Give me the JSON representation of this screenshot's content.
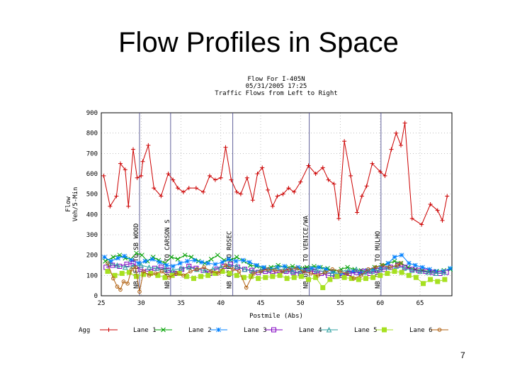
{
  "slide": {
    "title": "Flow Profiles in Space",
    "page_number": "7"
  },
  "colors": {
    "agg": "#cc0000",
    "lane1": "#00a000",
    "lane2": "#0080ff",
    "lane3": "#8000c0",
    "lane4": "#2ea0a0",
    "lane5": "#a6e020",
    "lane6": "#b06010",
    "axis": "#000000",
    "grid": "#9b9b9b",
    "station_line": "#505090"
  },
  "chart_data": {
    "type": "line",
    "title_lines": [
      "Flow For I-405N",
      "05/31/2005 17:25",
      "Traffic Flows from Left to Right"
    ],
    "xlabel": "Postmile (Abs)",
    "ylabel_lines": [
      "Flow",
      "Veh/5-Min"
    ],
    "xlim": [
      25,
      69
    ],
    "ylim": [
      0,
      900
    ],
    "xticks": [
      25,
      30,
      35,
      40,
      45,
      50,
      55,
      60,
      65
    ],
    "yticks": [
      0,
      100,
      200,
      300,
      400,
      500,
      600,
      700,
      800,
      900
    ],
    "vertical_markers": [
      {
        "x": 29.8,
        "label": "NB OFF TO SB WOOD"
      },
      {
        "x": 33.7,
        "label": "NB OFF TO CARSON S"
      },
      {
        "x": 41.5,
        "label": "NB OFF TO ROSEC"
      },
      {
        "x": 51.1,
        "label": "NB OFF TO VENICE/WA"
      },
      {
        "x": 60.1,
        "label": "NB OFF TO MULHO"
      }
    ],
    "series": [
      {
        "name": "Agg",
        "color_key": "agg",
        "marker": "plus",
        "x": [
          25.3,
          26.1,
          26.9,
          27.4,
          28.0,
          28.4,
          29.0,
          29.5,
          30.0,
          30.2,
          30.9,
          31.6,
          32.5,
          33.4,
          34.0,
          34.6,
          35.3,
          36.0,
          36.9,
          37.8,
          38.6,
          39.3,
          40.0,
          40.6,
          41.3,
          42.0,
          42.5,
          43.3,
          44.0,
          44.6,
          45.2,
          45.9,
          46.5,
          47.1,
          47.8,
          48.5,
          49.2,
          50.0,
          51.0,
          51.9,
          52.8,
          53.5,
          54.2,
          54.8,
          55.5,
          56.3,
          57.1,
          57.7,
          58.3,
          59.0,
          60.0,
          60.6,
          61.4,
          62.0,
          62.6,
          63.1,
          64.0,
          65.2,
          66.3,
          67.2,
          67.8,
          68.4
        ],
        "y": [
          590,
          440,
          490,
          650,
          620,
          440,
          720,
          580,
          590,
          660,
          740,
          530,
          490,
          600,
          570,
          530,
          510,
          530,
          530,
          510,
          590,
          570,
          580,
          730,
          570,
          510,
          500,
          580,
          470,
          600,
          630,
          520,
          440,
          490,
          500,
          530,
          510,
          560,
          640,
          600,
          630,
          570,
          550,
          380,
          760,
          590,
          410,
          490,
          540,
          650,
          610,
          590,
          720,
          800,
          740,
          850,
          380,
          350,
          450,
          420,
          370,
          490
        ]
      },
      {
        "name": "Lane 1",
        "color_key": "lane1",
        "marker": "x",
        "x": [
          25.5,
          26.5,
          27.3,
          28.0,
          28.7,
          29.4,
          30.1,
          30.8,
          31.5,
          32.2,
          33.0,
          33.8,
          34.6,
          35.5,
          36.3,
          37.2,
          38.0,
          38.8,
          39.6,
          40.4,
          41.2,
          42.0,
          42.9,
          43.7,
          44.5,
          45.4,
          46.3,
          47.2,
          48.1,
          49.0,
          49.9,
          50.8,
          51.7,
          52.5,
          53.4,
          54.2,
          55.1,
          55.9,
          56.8,
          57.6,
          58.5,
          59.3,
          60.2,
          61.0,
          61.8,
          62.6,
          63.5,
          64.4,
          65.3,
          66.2,
          67.1,
          68.0,
          68.8
        ],
        "y": [
          170,
          190,
          200,
          185,
          180,
          210,
          200,
          170,
          190,
          175,
          160,
          190,
          180,
          200,
          190,
          170,
          160,
          180,
          200,
          175,
          175,
          190,
          170,
          150,
          145,
          135,
          140,
          150,
          140,
          145,
          135,
          140,
          145,
          140,
          135,
          120,
          130,
          140,
          130,
          125,
          120,
          140,
          150,
          160,
          170,
          160,
          140,
          130,
          125,
          120,
          120,
          125,
          130
        ]
      },
      {
        "name": "Lane 2",
        "color_key": "lane2",
        "marker": "star",
        "x": [
          25.4,
          26.2,
          27.1,
          27.9,
          28.8,
          29.7,
          30.5,
          31.4,
          32.3,
          33.2,
          34.0,
          34.9,
          35.8,
          36.7,
          37.6,
          38.4,
          39.3,
          40.2,
          41.0,
          41.9,
          42.8,
          43.6,
          44.5,
          45.4,
          46.2,
          47.1,
          48.0,
          48.8,
          49.7,
          50.6,
          51.4,
          52.3,
          53.2,
          54.0,
          54.9,
          55.8,
          56.6,
          57.5,
          58.4,
          59.2,
          60.1,
          61.0,
          61.8,
          62.7,
          63.6,
          64.4,
          65.3,
          66.2,
          67.0,
          67.9,
          68.8
        ],
        "y": [
          190,
          170,
          185,
          195,
          175,
          160,
          170,
          180,
          165,
          150,
          145,
          160,
          170,
          175,
          165,
          160,
          155,
          165,
          180,
          170,
          175,
          165,
          150,
          140,
          130,
          140,
          145,
          130,
          140,
          125,
          135,
          140,
          130,
          120,
          100,
          115,
          120,
          110,
          125,
          130,
          140,
          160,
          190,
          200,
          160,
          150,
          140,
          130,
          120,
          120,
          135
        ]
      },
      {
        "name": "Lane 3",
        "color_key": "lane3",
        "marker": "square",
        "x": [
          25.6,
          26.4,
          27.3,
          28.2,
          29.0,
          29.9,
          30.8,
          31.7,
          32.5,
          33.4,
          34.3,
          35.1,
          36.0,
          36.9,
          37.8,
          38.6,
          39.5,
          40.4,
          41.2,
          42.1,
          43.0,
          43.9,
          44.7,
          45.6,
          46.5,
          47.4,
          48.2,
          49.1,
          50.0,
          50.9,
          51.8,
          52.6,
          53.5,
          54.4,
          55.2,
          56.1,
          57.0,
          57.9,
          58.7,
          59.6,
          60.5,
          61.3,
          62.2,
          63.1,
          64.0,
          64.8,
          65.7,
          66.6,
          67.5,
          68.3
        ],
        "y": [
          140,
          150,
          145,
          155,
          160,
          130,
          120,
          135,
          140,
          125,
          110,
          130,
          145,
          135,
          125,
          110,
          130,
          145,
          155,
          140,
          130,
          125,
          115,
          120,
          110,
          115,
          120,
          115,
          110,
          125,
          120,
          110,
          100,
          95,
          100,
          110,
          115,
          120,
          110,
          125,
          130,
          140,
          150,
          140,
          130,
          125,
          120,
          115,
          110,
          115
        ]
      },
      {
        "name": "Lane 4",
        "color_key": "lane4",
        "marker": "triangle",
        "x": [
          26.0,
          27.0,
          28.0,
          29.0,
          30.0,
          31.0,
          32.0,
          33.0,
          34.0,
          35.0,
          36.0,
          37.0,
          38.0,
          39.0,
          40.0,
          41.0,
          42.0,
          43.0,
          44.0,
          45.0,
          46.0,
          47.0,
          48.0,
          49.0,
          50.0,
          51.0,
          52.0,
          53.0,
          54.0,
          55.0,
          56.0,
          57.0,
          58.0,
          59.0,
          60.0,
          61.0,
          62.0,
          63.0,
          64.0,
          65.0,
          66.0,
          67.0,
          68.0
        ],
        "y": [
          160,
          150,
          140,
          145,
          150,
          140,
          135,
          130,
          125,
          135,
          140,
          130,
          125,
          130,
          140,
          150,
          145,
          130,
          120,
          125,
          130,
          135,
          125,
          120,
          115,
          130,
          125,
          120,
          110,
          120,
          125,
          130,
          115,
          120,
          130,
          140,
          145,
          135,
          125,
          120,
          115,
          110,
          115
        ]
      },
      {
        "name": "Lane 5",
        "color_key": "lane5",
        "marker": "filled-square",
        "x": [
          25.8,
          26.7,
          27.6,
          28.5,
          29.4,
          30.3,
          31.2,
          32.1,
          33.0,
          33.9,
          34.8,
          35.7,
          36.6,
          37.5,
          38.4,
          39.3,
          40.2,
          41.1,
          42.0,
          42.9,
          43.8,
          44.7,
          45.6,
          46.5,
          47.4,
          48.3,
          49.2,
          50.1,
          51.0,
          51.9,
          52.8,
          53.7,
          54.6,
          55.5,
          56.4,
          57.3,
          58.2,
          59.1,
          60.0,
          60.9,
          61.8,
          62.7,
          63.6,
          64.5,
          65.4,
          66.3,
          67.2,
          68.1
        ],
        "y": [
          120,
          100,
          110,
          115,
          95,
          105,
          110,
          100,
          90,
          100,
          110,
          95,
          85,
          95,
          100,
          110,
          120,
          110,
          100,
          90,
          95,
          85,
          90,
          95,
          100,
          85,
          90,
          95,
          80,
          90,
          40,
          80,
          95,
          90,
          85,
          80,
          85,
          90,
          100,
          110,
          120,
          115,
          100,
          90,
          60,
          80,
          70,
          80
        ]
      },
      {
        "name": "Lane 6",
        "color_key": "lane6",
        "marker": "circle",
        "x": [
          25.8,
          26.5,
          27.0,
          27.4,
          27.8,
          28.3,
          28.8,
          29.3,
          29.8,
          30.3,
          31.0,
          31.8,
          32.6,
          33.5,
          34.4,
          35.3,
          36.2,
          37.0,
          37.9,
          38.8,
          39.7,
          40.6,
          41.5,
          42.3,
          43.2,
          44.1,
          45.0,
          45.9,
          46.8,
          47.7,
          48.6,
          49.5,
          50.4,
          51.3,
          52.2,
          53.1,
          54.0,
          54.9,
          55.8,
          56.7,
          57.6,
          58.5,
          59.4,
          60.3,
          61.2,
          62.1,
          62.6
        ],
        "y": [
          160,
          85,
          45,
          30,
          70,
          60,
          130,
          140,
          20,
          120,
          100,
          110,
          120,
          90,
          110,
          100,
          120,
          130,
          140,
          120,
          110,
          150,
          130,
          120,
          40,
          110,
          120,
          130,
          125,
          120,
          130,
          135,
          120,
          110,
          100,
          115,
          130,
          120,
          110,
          85,
          100,
          130,
          140,
          150,
          140,
          150,
          160
        ]
      }
    ]
  }
}
